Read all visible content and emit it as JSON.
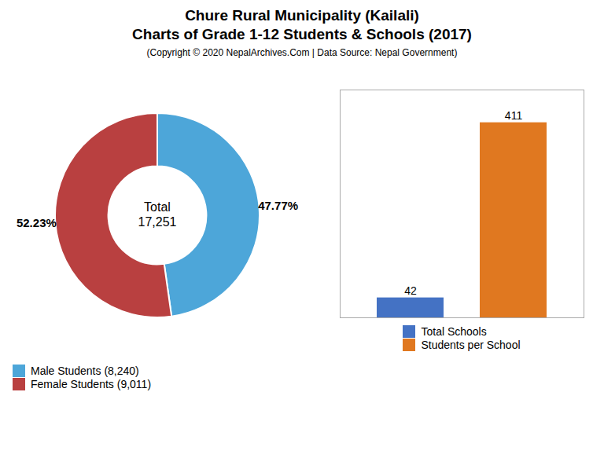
{
  "chart_data": [
    {
      "type": "pie",
      "title": "Chure Rural Municipality (Kailali)\nCharts of Grade 1-12 Students & Schools (2017)",
      "subtitle": "(Copyright © 2020 NepalArchives.Com | Data Source: Nepal Government)",
      "categories": [
        "Male Students (8,240)",
        "Female Students (9,011)"
      ],
      "values": [
        47.77,
        52.23
      ],
      "value_labels": [
        "47.77%",
        "52.23%"
      ],
      "colors": [
        "#4da6d9",
        "#b94040"
      ],
      "annotation": "Total\n17,251",
      "data_labels": true,
      "legend": "lower left"
    },
    {
      "type": "bar",
      "categories": [
        "Total Schools",
        "Students per School"
      ],
      "values": [
        42,
        411
      ],
      "colors": [
        "#4472c4",
        "#e07820"
      ],
      "ylim": [
        0,
        480
      ],
      "yticks": [],
      "tick_labels": false,
      "data_labels": true,
      "legend": "bottom"
    }
  ]
}
